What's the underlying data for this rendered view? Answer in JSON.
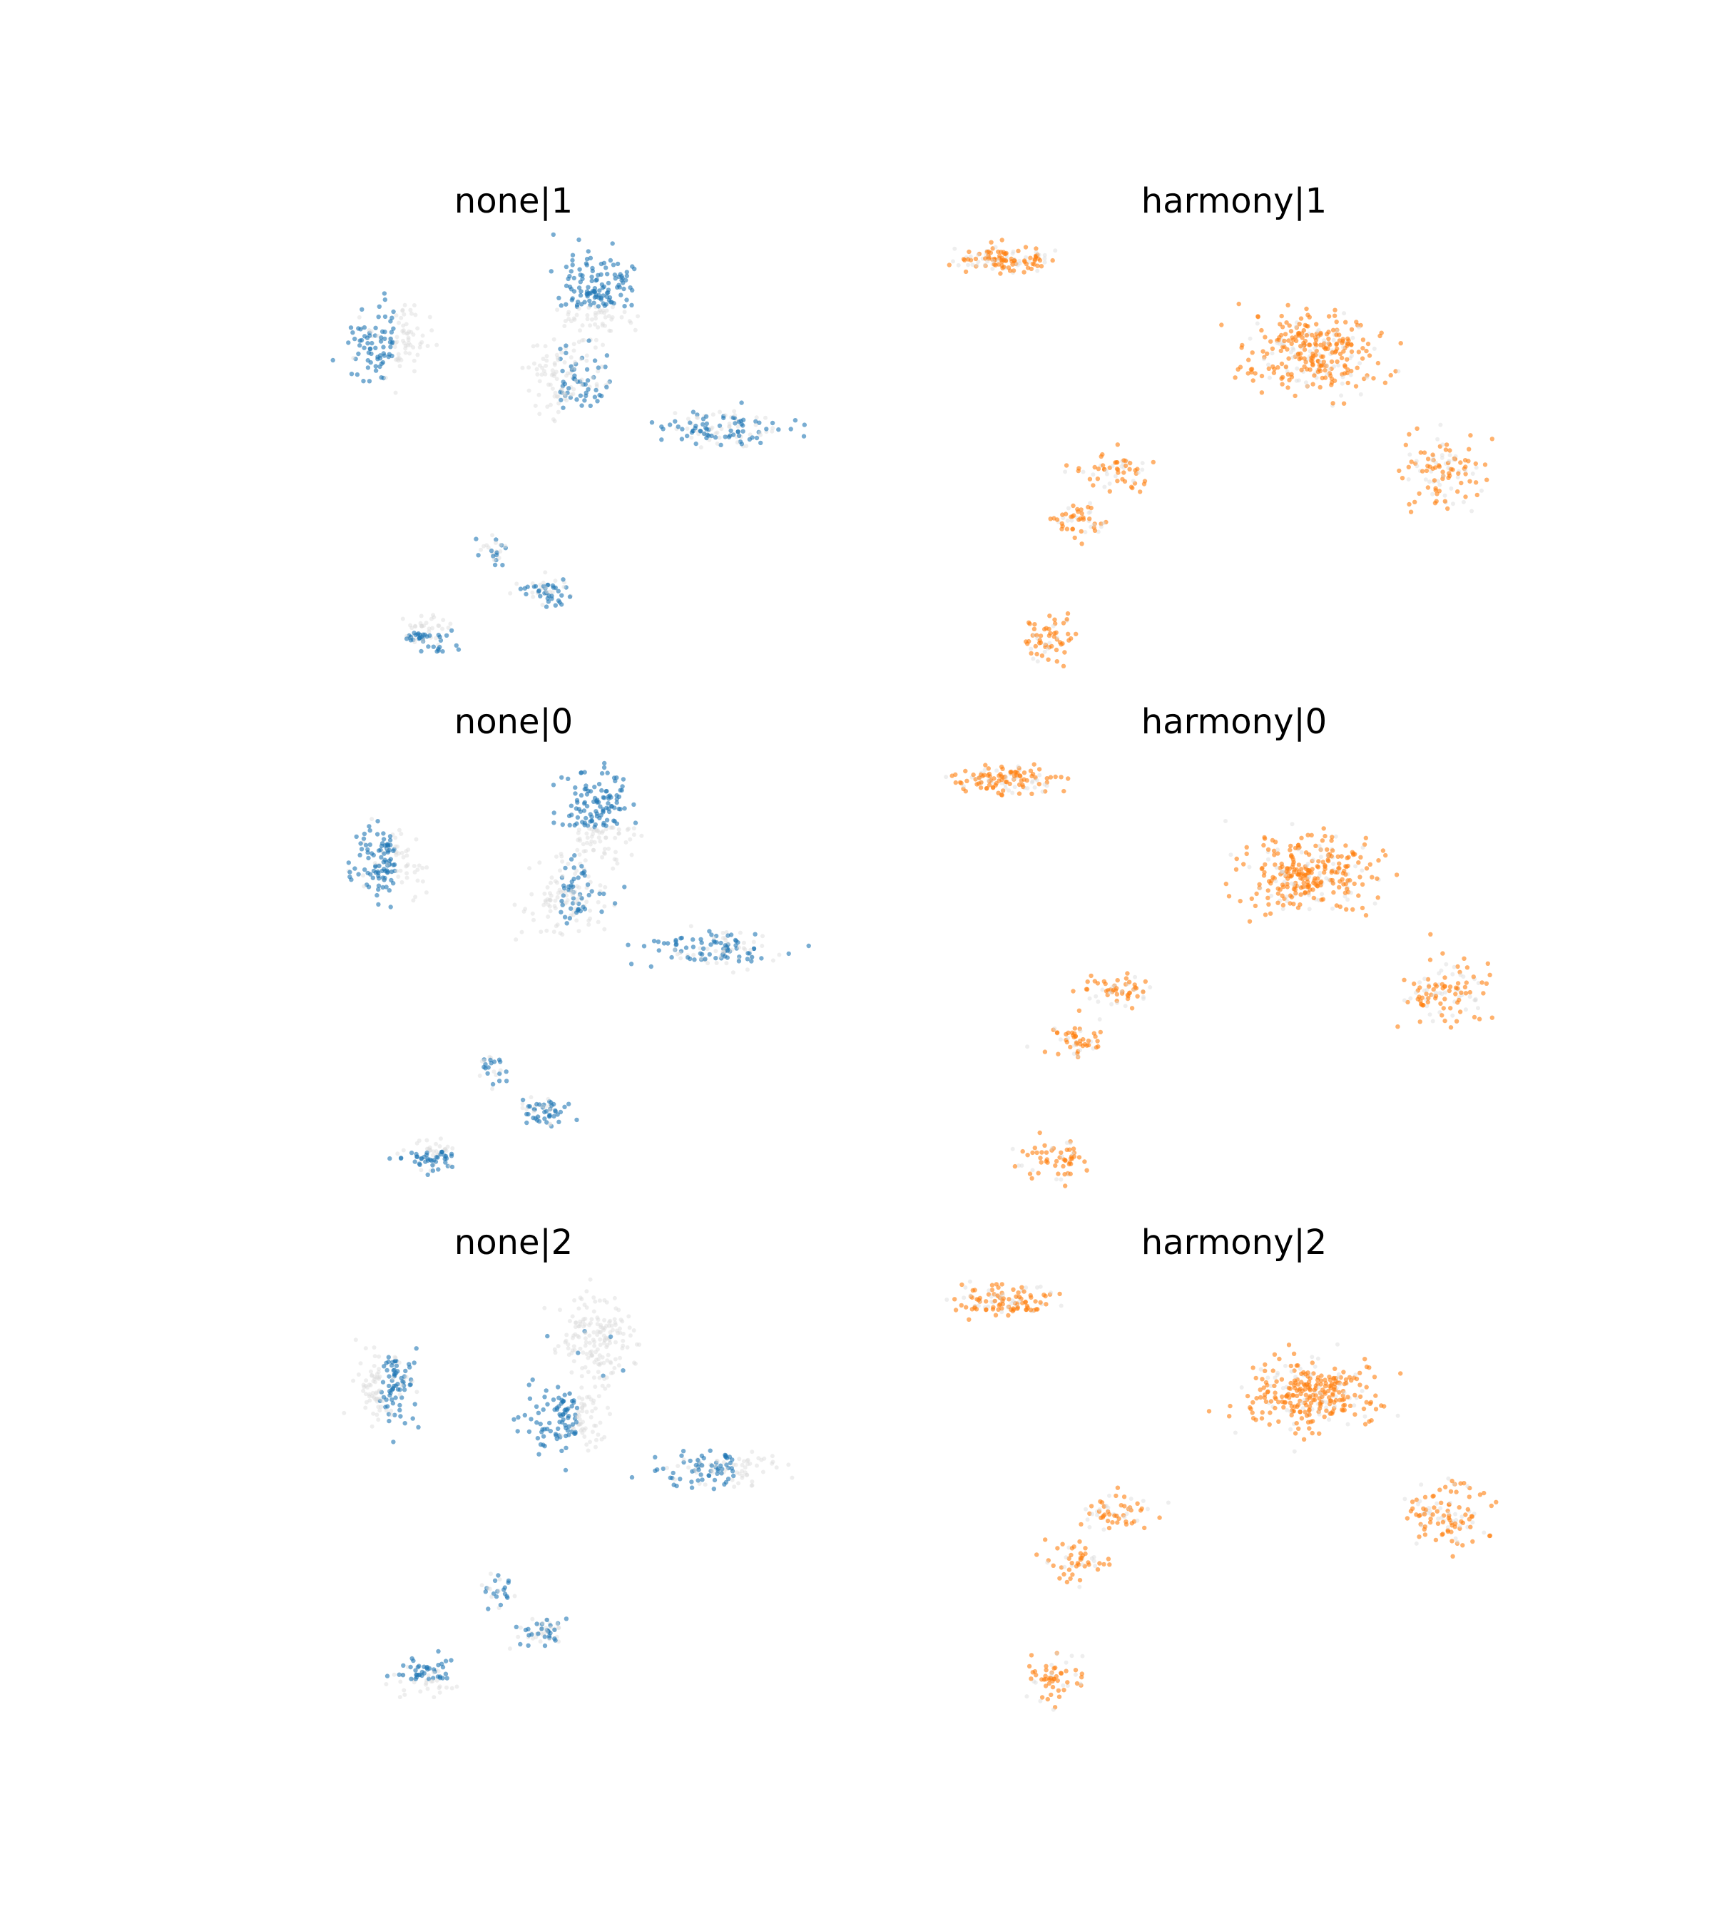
{
  "figure": {
    "description_colors": {
      "background_cells": "#d9d9d9",
      "none_highlight": "#1f77b4",
      "harmony_highlight": "#ff7f0e"
    }
  },
  "chart_data": [
    {
      "type": "scatter",
      "title": "none|1",
      "method": "none",
      "batch": "1",
      "highlight_color": "#1f77b4",
      "grid": false,
      "axes_visible": false,
      "clusters": [
        {
          "cx": 0.27,
          "cy": 0.76,
          "sx": 0.045,
          "sy": 0.06,
          "n": 140,
          "frac": 0.6,
          "side": "left"
        },
        {
          "cx": 0.64,
          "cy": 0.87,
          "sx": 0.045,
          "sy": 0.075,
          "n": 170,
          "frac": 0.85,
          "side": "top"
        },
        {
          "cx": 0.59,
          "cy": 0.68,
          "sx": 0.05,
          "sy": 0.06,
          "n": 140,
          "frac": 0.25,
          "side": "right"
        },
        {
          "cx": 0.86,
          "cy": 0.56,
          "sx": 0.08,
          "sy": 0.03,
          "n": 120,
          "frac": 0.65,
          "side": "none"
        },
        {
          "cx": 0.46,
          "cy": 0.27,
          "sx": 0.02,
          "sy": 0.03,
          "n": 25,
          "frac": 0.6,
          "side": "none"
        },
        {
          "cx": 0.55,
          "cy": 0.17,
          "sx": 0.03,
          "sy": 0.025,
          "n": 55,
          "frac": 0.6,
          "side": "none"
        },
        {
          "cx": 0.34,
          "cy": 0.07,
          "sx": 0.04,
          "sy": 0.03,
          "n": 70,
          "frac": 0.6,
          "side": "bottom"
        }
      ]
    },
    {
      "type": "scatter",
      "title": "harmony|1",
      "method": "harmony",
      "batch": "1",
      "highlight_color": "#ff7f0e",
      "grid": false,
      "axes_visible": false,
      "clusters": [
        {
          "cx": 0.09,
          "cy": 0.96,
          "sx": 0.06,
          "sy": 0.025,
          "n": 120,
          "frac": 0.7,
          "side": "none"
        },
        {
          "cx": 0.62,
          "cy": 0.74,
          "sx": 0.08,
          "sy": 0.065,
          "n": 300,
          "frac": 0.75,
          "side": "none"
        },
        {
          "cx": 0.28,
          "cy": 0.46,
          "sx": 0.045,
          "sy": 0.03,
          "n": 60,
          "frac": 0.7,
          "side": "none"
        },
        {
          "cx": 0.86,
          "cy": 0.46,
          "sx": 0.05,
          "sy": 0.06,
          "n": 110,
          "frac": 0.65,
          "side": "none"
        },
        {
          "cx": 0.21,
          "cy": 0.34,
          "sx": 0.04,
          "sy": 0.03,
          "n": 50,
          "frac": 0.7,
          "side": "none"
        },
        {
          "cx": 0.17,
          "cy": 0.06,
          "sx": 0.035,
          "sy": 0.04,
          "n": 60,
          "frac": 0.75,
          "side": "none"
        }
      ]
    },
    {
      "type": "scatter",
      "title": "none|0",
      "method": "none",
      "batch": "0",
      "highlight_color": "#1f77b4",
      "grid": false,
      "axes_visible": false,
      "clusters": [
        {
          "cx": 0.27,
          "cy": 0.76,
          "sx": 0.045,
          "sy": 0.06,
          "n": 140,
          "frac": 0.6,
          "side": "left"
        },
        {
          "cx": 0.64,
          "cy": 0.87,
          "sx": 0.045,
          "sy": 0.075,
          "n": 170,
          "frac": 0.85,
          "side": "top"
        },
        {
          "cx": 0.59,
          "cy": 0.68,
          "sx": 0.05,
          "sy": 0.06,
          "n": 140,
          "frac": 0.3,
          "side": "right"
        },
        {
          "cx": 0.86,
          "cy": 0.56,
          "sx": 0.08,
          "sy": 0.03,
          "n": 120,
          "frac": 0.6,
          "side": "none"
        },
        {
          "cx": 0.46,
          "cy": 0.27,
          "sx": 0.02,
          "sy": 0.03,
          "n": 25,
          "frac": 0.6,
          "side": "none"
        },
        {
          "cx": 0.55,
          "cy": 0.17,
          "sx": 0.03,
          "sy": 0.025,
          "n": 55,
          "frac": 0.6,
          "side": "none"
        },
        {
          "cx": 0.34,
          "cy": 0.07,
          "sx": 0.04,
          "sy": 0.03,
          "n": 70,
          "frac": 0.55,
          "side": "bottom"
        }
      ]
    },
    {
      "type": "scatter",
      "title": "harmony|0",
      "method": "harmony",
      "batch": "0",
      "highlight_color": "#ff7f0e",
      "grid": false,
      "axes_visible": false,
      "clusters": [
        {
          "cx": 0.09,
          "cy": 0.96,
          "sx": 0.06,
          "sy": 0.025,
          "n": 120,
          "frac": 0.7,
          "side": "none"
        },
        {
          "cx": 0.62,
          "cy": 0.74,
          "sx": 0.08,
          "sy": 0.065,
          "n": 300,
          "frac": 0.75,
          "side": "none"
        },
        {
          "cx": 0.28,
          "cy": 0.46,
          "sx": 0.045,
          "sy": 0.03,
          "n": 60,
          "frac": 0.7,
          "side": "none"
        },
        {
          "cx": 0.86,
          "cy": 0.46,
          "sx": 0.05,
          "sy": 0.06,
          "n": 110,
          "frac": 0.65,
          "side": "none"
        },
        {
          "cx": 0.21,
          "cy": 0.34,
          "sx": 0.04,
          "sy": 0.03,
          "n": 50,
          "frac": 0.7,
          "side": "none"
        },
        {
          "cx": 0.17,
          "cy": 0.06,
          "sx": 0.035,
          "sy": 0.04,
          "n": 60,
          "frac": 0.75,
          "side": "none"
        }
      ]
    },
    {
      "type": "scatter",
      "title": "none|2",
      "method": "none",
      "batch": "2",
      "highlight_color": "#1f77b4",
      "grid": false,
      "axes_visible": false,
      "clusters": [
        {
          "cx": 0.27,
          "cy": 0.76,
          "sx": 0.045,
          "sy": 0.06,
          "n": 140,
          "frac": 0.55,
          "side": "right"
        },
        {
          "cx": 0.64,
          "cy": 0.87,
          "sx": 0.045,
          "sy": 0.075,
          "n": 170,
          "frac": 0.05,
          "side": "none"
        },
        {
          "cx": 0.59,
          "cy": 0.68,
          "sx": 0.05,
          "sy": 0.06,
          "n": 140,
          "frac": 0.7,
          "side": "left"
        },
        {
          "cx": 0.86,
          "cy": 0.56,
          "sx": 0.08,
          "sy": 0.03,
          "n": 120,
          "frac": 0.45,
          "side": "left"
        },
        {
          "cx": 0.46,
          "cy": 0.27,
          "sx": 0.02,
          "sy": 0.03,
          "n": 25,
          "frac": 0.5,
          "side": "none"
        },
        {
          "cx": 0.55,
          "cy": 0.17,
          "sx": 0.03,
          "sy": 0.025,
          "n": 55,
          "frac": 0.5,
          "side": "none"
        },
        {
          "cx": 0.34,
          "cy": 0.07,
          "sx": 0.04,
          "sy": 0.03,
          "n": 70,
          "frac": 0.55,
          "side": "top"
        }
      ]
    },
    {
      "type": "scatter",
      "title": "harmony|2",
      "method": "harmony",
      "batch": "2",
      "highlight_color": "#ff7f0e",
      "grid": false,
      "axes_visible": false,
      "clusters": [
        {
          "cx": 0.09,
          "cy": 0.96,
          "sx": 0.06,
          "sy": 0.025,
          "n": 120,
          "frac": 0.7,
          "side": "none"
        },
        {
          "cx": 0.62,
          "cy": 0.74,
          "sx": 0.08,
          "sy": 0.065,
          "n": 300,
          "frac": 0.75,
          "side": "none"
        },
        {
          "cx": 0.28,
          "cy": 0.46,
          "sx": 0.045,
          "sy": 0.03,
          "n": 60,
          "frac": 0.7,
          "side": "none"
        },
        {
          "cx": 0.86,
          "cy": 0.46,
          "sx": 0.05,
          "sy": 0.06,
          "n": 110,
          "frac": 0.65,
          "side": "none"
        },
        {
          "cx": 0.21,
          "cy": 0.34,
          "sx": 0.04,
          "sy": 0.03,
          "n": 50,
          "frac": 0.7,
          "side": "none"
        },
        {
          "cx": 0.17,
          "cy": 0.06,
          "sx": 0.035,
          "sy": 0.04,
          "n": 60,
          "frac": 0.75,
          "side": "none"
        }
      ]
    }
  ]
}
